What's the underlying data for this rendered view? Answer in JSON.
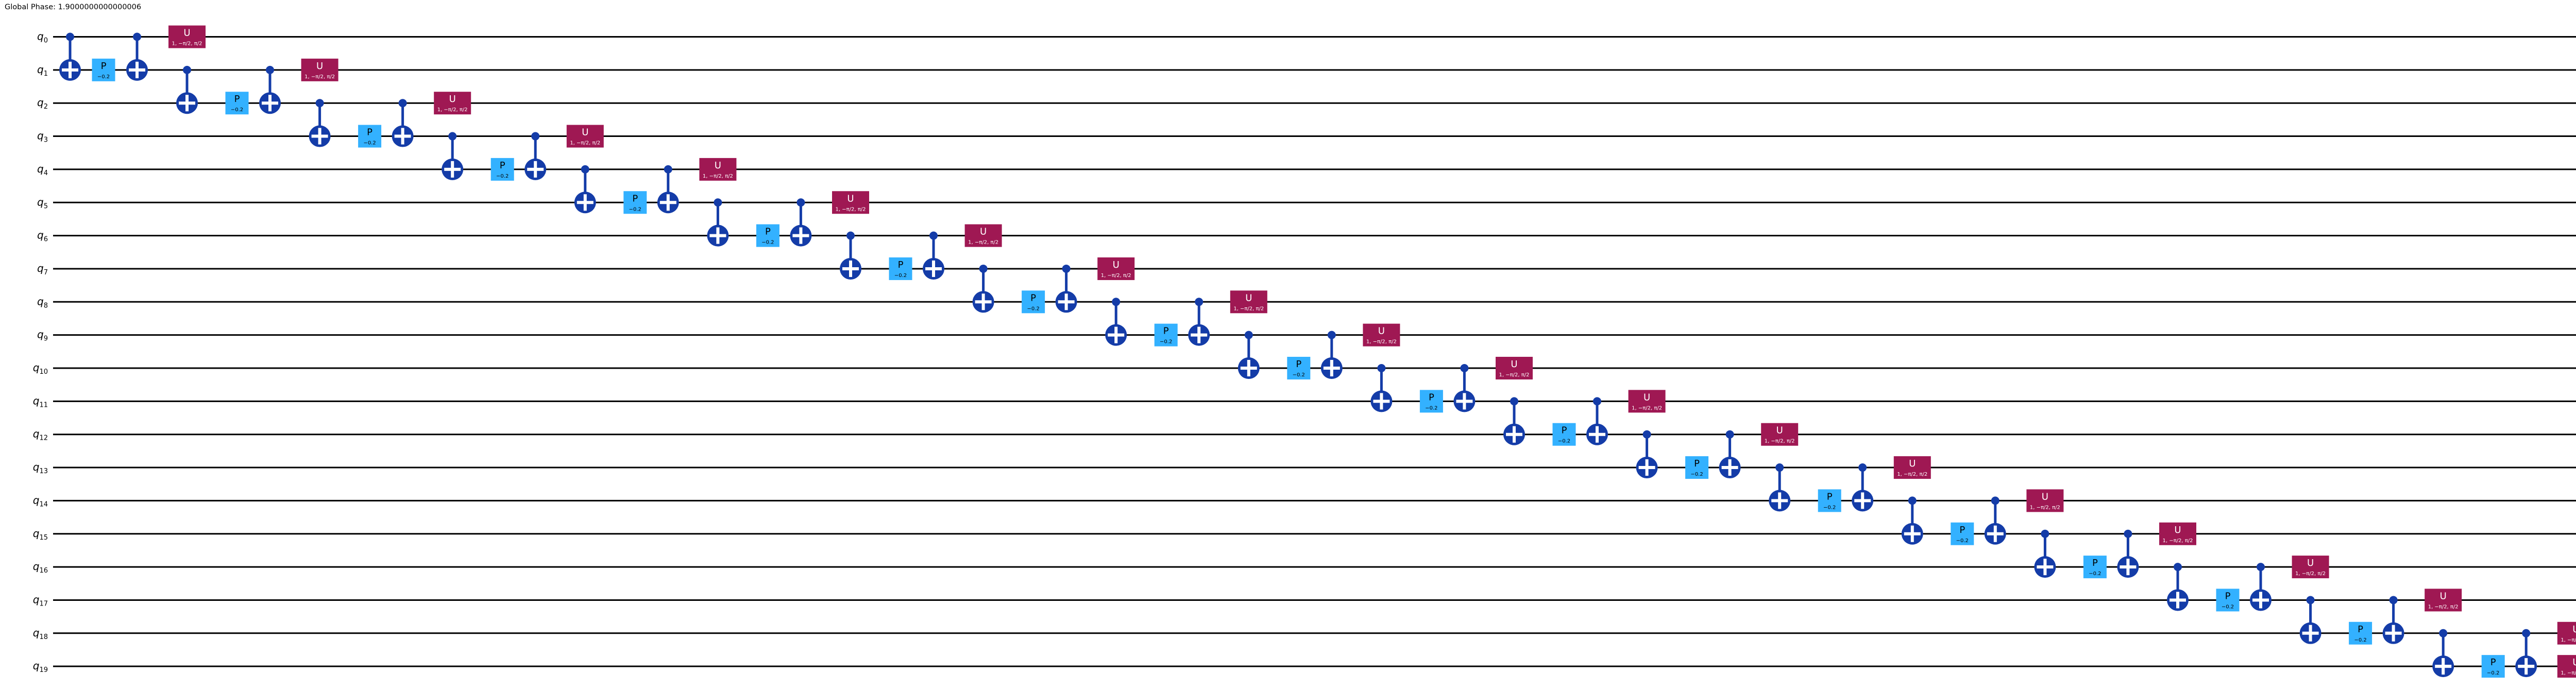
{
  "global_phase": "Global Phase: 1.9000000000000006",
  "qubits": [
    {
      "label": "q",
      "subscript": "0"
    },
    {
      "label": "q",
      "subscript": "1"
    },
    {
      "label": "q",
      "subscript": "2"
    },
    {
      "label": "q",
      "subscript": "3"
    },
    {
      "label": "q",
      "subscript": "4"
    },
    {
      "label": "q",
      "subscript": "5"
    },
    {
      "label": "q",
      "subscript": "6"
    },
    {
      "label": "q",
      "subscript": "7"
    },
    {
      "label": "q",
      "subscript": "8"
    },
    {
      "label": "q",
      "subscript": "9"
    },
    {
      "label": "q",
      "subscript": "10"
    },
    {
      "label": "q",
      "subscript": "11"
    },
    {
      "label": "q",
      "subscript": "12"
    },
    {
      "label": "q",
      "subscript": "13"
    },
    {
      "label": "q",
      "subscript": "14"
    },
    {
      "label": "q",
      "subscript": "15"
    },
    {
      "label": "q",
      "subscript": "16"
    },
    {
      "label": "q",
      "subscript": "17"
    },
    {
      "label": "q",
      "subscript": "18"
    },
    {
      "label": "q",
      "subscript": "19"
    }
  ],
  "gate_defs": {
    "cx": {
      "name": "cx",
      "color": "#143CA8",
      "cross_color": "#ffffff"
    },
    "p": {
      "name": "p",
      "label": "P",
      "param": "−0.2",
      "bg": "#33B1FF",
      "fg": "#000000"
    },
    "u": {
      "name": "u",
      "label": "U",
      "param": "1, −π/2, π/2",
      "bg": "#9F1853",
      "fg": "#ffffff"
    }
  },
  "wire_color": "#000000",
  "label_color": "#000000",
  "circuit": {
    "blocks": [
      {
        "control": 0,
        "target": 1
      },
      {
        "control": 1,
        "target": 2
      },
      {
        "control": 2,
        "target": 3
      },
      {
        "control": 3,
        "target": 4
      },
      {
        "control": 4,
        "target": 5
      },
      {
        "control": 5,
        "target": 6
      },
      {
        "control": 6,
        "target": 7
      },
      {
        "control": 7,
        "target": 8
      },
      {
        "control": 8,
        "target": 9
      },
      {
        "control": 9,
        "target": 10
      },
      {
        "control": 10,
        "target": 11
      },
      {
        "control": 11,
        "target": 12
      },
      {
        "control": 12,
        "target": 13
      },
      {
        "control": 13,
        "target": 14
      },
      {
        "control": 14,
        "target": 15
      },
      {
        "control": 15,
        "target": 16
      },
      {
        "control": 16,
        "target": 17
      },
      {
        "control": 17,
        "target": 18
      },
      {
        "control": 18,
        "target": 19
      }
    ],
    "final_u_qubit": 19
  }
}
